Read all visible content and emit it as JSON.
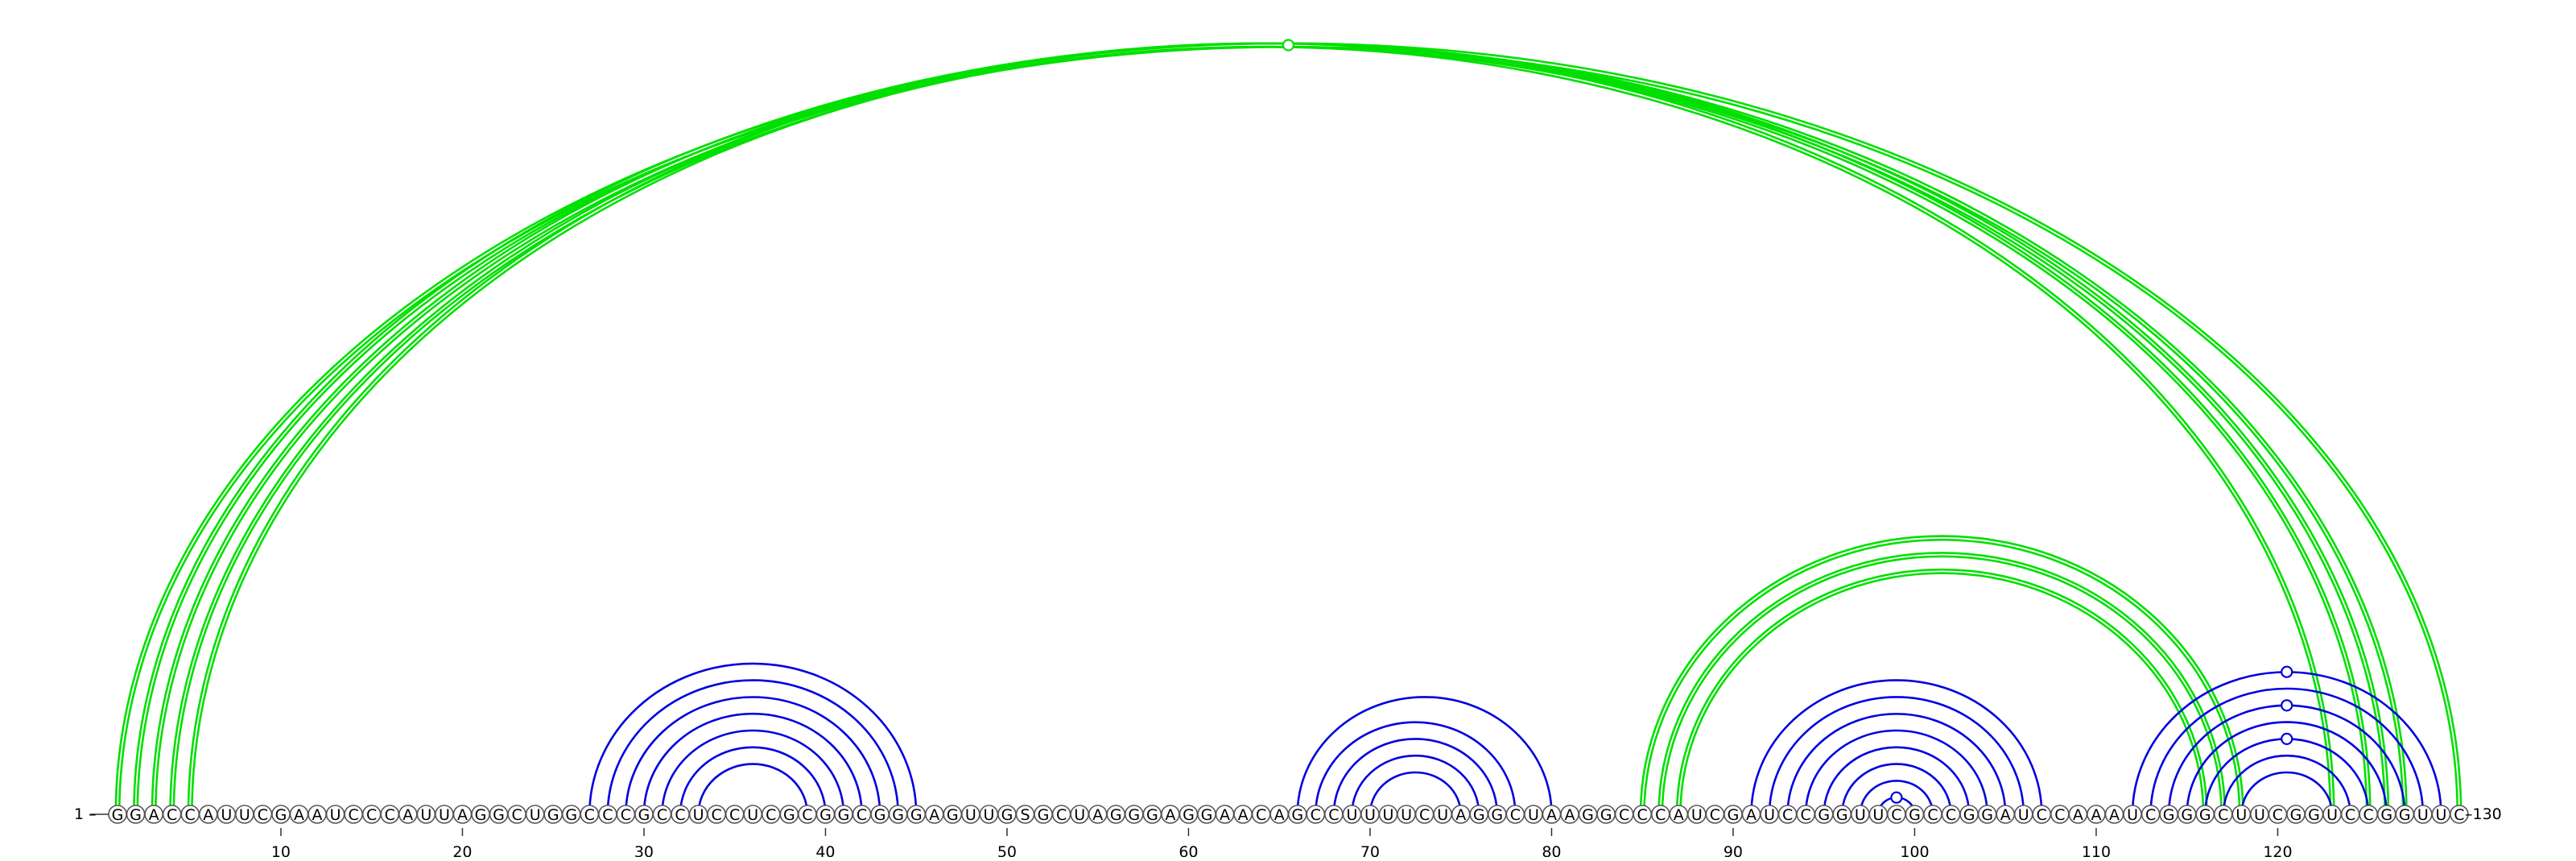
{
  "diagram": {
    "type": "rna-arc-diagram",
    "sequence": "GGACCAUUCGAAUCCCAUUAGGCUGGCCCGCCUCCUCGCGGCGGGAGUUGSGCUAGGGAGGAACAGCCUUUUCUAGGCUAAGGCCCAUCGAUCCGGUUCGCCGGAUCCAAAUCGGGCUUCGGUCCGGUUC",
    "start_label": "1",
    "end_label": "130",
    "tick_positions": [
      10,
      20,
      30,
      40,
      50,
      60,
      70,
      80,
      90,
      100,
      110,
      120
    ],
    "tick_labels": [
      "10",
      "20",
      "30",
      "40",
      "50",
      "60",
      "70",
      "80",
      "90",
      "100",
      "110",
      "120"
    ],
    "colors": {
      "outer_pairs": "#00e000",
      "local_pairs": "#0000e0",
      "base_outline": "#555555"
    },
    "helices": [
      {
        "color": "outer_pairs",
        "line": "double",
        "pairs": [
          [
            1,
            130
          ],
          [
            2,
            127
          ],
          [
            3,
            126
          ],
          [
            4,
            125
          ],
          [
            5,
            123
          ]
        ]
      },
      {
        "color": "outer_pairs",
        "line": "double",
        "pairs": [
          [
            85,
            118
          ],
          [
            86,
            117
          ],
          [
            87,
            116
          ]
        ]
      },
      {
        "color": "local_pairs",
        "line": "single",
        "pairs": [
          [
            27,
            45
          ],
          [
            28,
            44
          ],
          [
            29,
            43
          ],
          [
            30,
            42
          ],
          [
            31,
            41
          ],
          [
            32,
            40
          ],
          [
            33,
            39
          ]
        ]
      },
      {
        "color": "local_pairs",
        "line": "single",
        "pairs": [
          [
            66,
            80
          ],
          [
            67,
            78
          ],
          [
            68,
            77
          ],
          [
            69,
            76
          ],
          [
            70,
            75
          ]
        ]
      },
      {
        "color": "local_pairs",
        "line": "single",
        "pairs": [
          [
            91,
            107
          ],
          [
            92,
            106
          ],
          [
            93,
            105
          ],
          [
            94,
            104
          ],
          [
            95,
            103
          ],
          [
            96,
            102
          ],
          [
            97,
            101
          ],
          [
            98,
            100
          ]
        ]
      },
      {
        "color": "local_pairs",
        "line": "single",
        "pairs": [
          [
            112,
            129
          ],
          [
            113,
            128
          ],
          [
            114,
            127
          ],
          [
            115,
            126
          ],
          [
            116,
            125
          ],
          [
            117,
            124
          ],
          [
            118,
            123
          ]
        ]
      }
    ],
    "noncanonical_markers": [
      {
        "i": 1,
        "j": 130,
        "color": "outer_pairs"
      },
      {
        "i": 98,
        "j": 100,
        "color": "local_pairs"
      },
      {
        "i": 112,
        "j": 129,
        "color": "local_pairs"
      },
      {
        "i": 114,
        "j": 127,
        "color": "local_pairs"
      },
      {
        "i": 116,
        "j": 125,
        "color": "local_pairs"
      }
    ]
  }
}
